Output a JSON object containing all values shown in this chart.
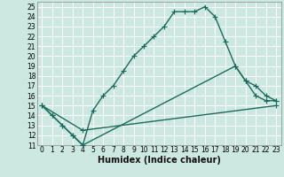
{
  "xlabel": "Humidex (Indice chaleur)",
  "background_color": "#cce8e0",
  "grid_color": "#ffffff",
  "line_color": "#1a6b5e",
  "xlim": [
    -0.5,
    23.5
  ],
  "ylim": [
    11,
    25.5
  ],
  "xticks": [
    0,
    1,
    2,
    3,
    4,
    5,
    6,
    7,
    8,
    9,
    10,
    11,
    12,
    13,
    14,
    15,
    16,
    17,
    18,
    19,
    20,
    21,
    22,
    23
  ],
  "yticks": [
    11,
    12,
    13,
    14,
    15,
    16,
    17,
    18,
    19,
    20,
    21,
    22,
    23,
    24,
    25
  ],
  "line1_x": [
    0,
    1,
    2,
    3,
    4,
    5,
    6,
    7,
    8,
    9,
    10,
    11,
    12,
    13,
    14,
    15,
    16,
    17,
    18,
    19,
    20,
    21,
    22,
    23
  ],
  "line1_y": [
    15,
    14,
    13,
    12,
    11,
    14.5,
    16,
    17,
    18.5,
    20,
    21,
    22,
    23,
    24.5,
    24.5,
    24.5,
    25,
    24,
    21.5,
    19,
    17.5,
    16,
    15.5,
    15.5
  ],
  "line2_x": [
    0,
    1,
    2,
    3,
    4,
    19,
    20,
    21,
    22,
    23
  ],
  "line2_y": [
    15,
    14,
    13,
    12,
    11,
    19,
    17.5,
    17,
    16,
    15.5
  ],
  "line3_x": [
    0,
    4,
    23
  ],
  "line3_y": [
    15,
    12.5,
    15
  ],
  "marker_size": 4,
  "line_width": 1.0,
  "tick_fontsize": 5.5,
  "xlabel_fontsize": 7
}
